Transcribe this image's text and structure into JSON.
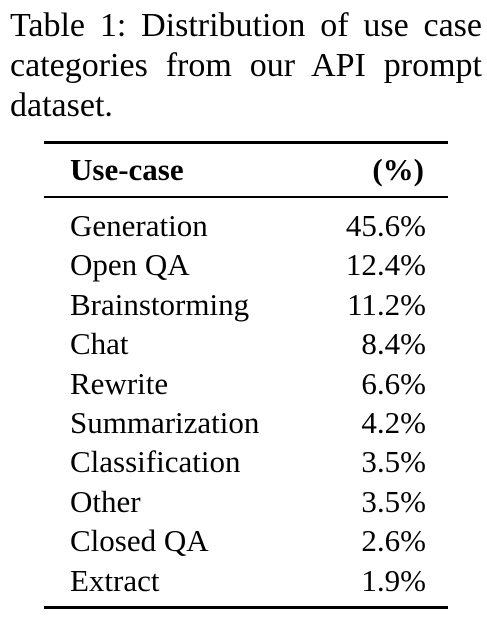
{
  "caption": "Table 1: Distribution of use case categories from our API prompt dataset.",
  "table": {
    "headers": {
      "name": "Use-case",
      "percent": "(%)"
    },
    "rows": [
      {
        "name": "Generation",
        "percent": "45.6%"
      },
      {
        "name": "Open QA",
        "percent": "12.4%"
      },
      {
        "name": "Brainstorming",
        "percent": "11.2%"
      },
      {
        "name": "Chat",
        "percent": "8.4%"
      },
      {
        "name": "Rewrite",
        "percent": "6.6%"
      },
      {
        "name": "Summarization",
        "percent": "4.2%"
      },
      {
        "name": "Classification",
        "percent": "3.5%"
      },
      {
        "name": "Other",
        "percent": "3.5%"
      },
      {
        "name": "Closed QA",
        "percent": "2.6%"
      },
      {
        "name": "Extract",
        "percent": "1.9%"
      }
    ]
  }
}
